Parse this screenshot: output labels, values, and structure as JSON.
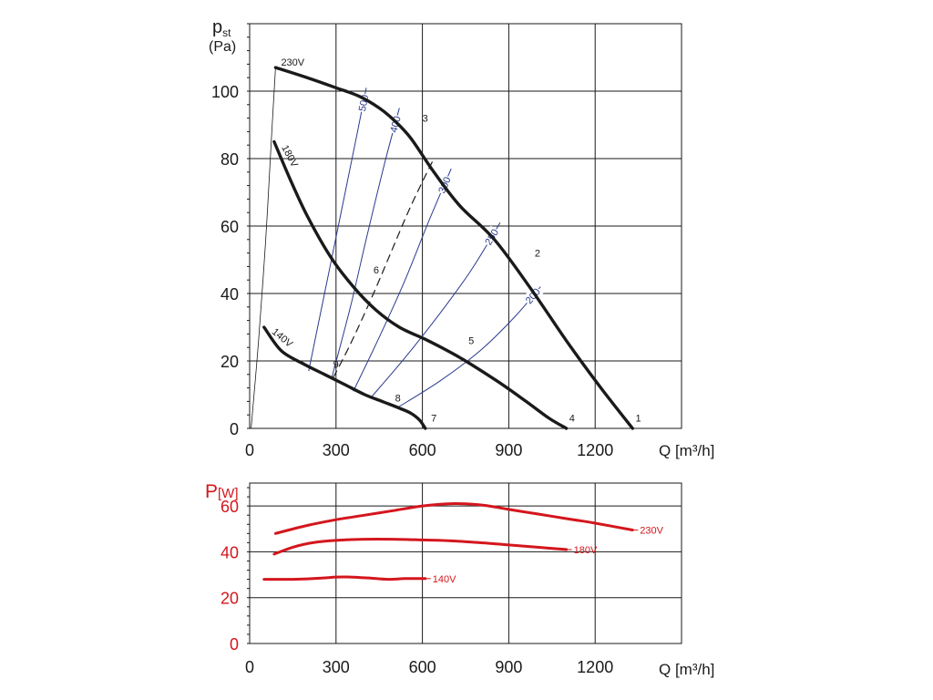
{
  "chart_data": [
    {
      "type": "line",
      "title": "",
      "ylabel_main": "p",
      "ylabel_sub": "st",
      "yunit": "(Pa)",
      "xlabel": "Q [m³/h]",
      "xlim": [
        0,
        1500
      ],
      "ylim": [
        0,
        120
      ],
      "xticks": [
        0,
        300,
        600,
        900,
        1200
      ],
      "xtick_labels": [
        "0",
        "300",
        "600",
        "900",
        "1200"
      ],
      "yticks": [
        0,
        20,
        40,
        60,
        80,
        100
      ],
      "ytick_labels": [
        "0",
        "20",
        "40",
        "60",
        "80",
        "100"
      ],
      "grid": true,
      "series": [
        {
          "name": "230V",
          "color": "#1a1a1a",
          "x": [
            90,
            200,
            300,
            380,
            450,
            500,
            560,
            640,
            730,
            850,
            980,
            1100,
            1220,
            1330
          ],
          "y": [
            107,
            104,
            101,
            98.5,
            95,
            91.5,
            86,
            76,
            66,
            56,
            41,
            26,
            12,
            0
          ]
        },
        {
          "name": "180V",
          "color": "#1a1a1a",
          "x": [
            85,
            140,
            200,
            280,
            360,
            440,
            520,
            620,
            730,
            860,
            960,
            1040,
            1100
          ],
          "y": [
            85,
            74,
            63,
            51,
            42,
            35,
            30,
            26,
            21,
            14,
            8,
            3,
            0
          ]
        },
        {
          "name": "140V",
          "color": "#1a1a1a",
          "x": [
            50,
            110,
            190,
            260,
            330,
            400,
            460,
            520,
            560,
            590,
            610
          ],
          "y": [
            30,
            23,
            19,
            16,
            13,
            10,
            8,
            6,
            4.5,
            2.5,
            0
          ]
        }
      ],
      "point_labels": [
        {
          "text": "1",
          "x": 1340,
          "y": 2
        },
        {
          "text": "2",
          "x": 990,
          "y": 51
        },
        {
          "text": "3",
          "x": 600,
          "y": 91
        },
        {
          "text": "4",
          "x": 1110,
          "y": 2
        },
        {
          "text": "5",
          "x": 760,
          "y": 25
        },
        {
          "text": "6",
          "x": 430,
          "y": 46
        },
        {
          "text": "7",
          "x": 630,
          "y": 2
        },
        {
          "text": "8",
          "x": 505,
          "y": 8
        },
        {
          "text": "9",
          "x": 290,
          "y": 18
        }
      ],
      "iso_lines": [
        {
          "label": "500",
          "color": "#2b3a8f",
          "x": [
            205,
            260,
            320,
            370,
            405
          ],
          "y": [
            17,
            40,
            65,
            86,
            101
          ]
        },
        {
          "label": "400",
          "color": "#2b3a8f",
          "x": [
            285,
            350,
            410,
            470,
            520
          ],
          "y": [
            15,
            36,
            58,
            79,
            95
          ]
        },
        {
          "label": "300",
          "color": "#2b3a8f",
          "x": [
            360,
            450,
            540,
            620,
            700
          ],
          "y": [
            11,
            27,
            44,
            61,
            77
          ]
        },
        {
          "label": "250",
          "color": "#2b3a8f",
          "x": [
            420,
            540,
            660,
            770,
            870
          ],
          "y": [
            9,
            21,
            34,
            47,
            61
          ]
        },
        {
          "label": "200",
          "color": "#2b3a8f",
          "x": [
            510,
            660,
            800,
            920,
            1010
          ],
          "y": [
            6,
            14,
            23,
            33,
            42
          ]
        }
      ],
      "dashed_line": {
        "x": [
          290,
          350,
          420,
          490,
          560,
          640
        ],
        "y": [
          15,
          25,
          38,
          52,
          66,
          80
        ]
      },
      "system_curve": {
        "x": [
          5,
          30,
          55,
          75,
          90
        ],
        "y": [
          0,
          25,
          55,
          85,
          107
        ]
      }
    },
    {
      "type": "line",
      "title": "",
      "ylabel_main": "P",
      "yunit": "[W]",
      "xlabel": "Q [m³/h]",
      "xlim": [
        0,
        1500
      ],
      "ylim": [
        0,
        70
      ],
      "xticks": [
        0,
        300,
        600,
        900,
        1200
      ],
      "xtick_labels": [
        "0",
        "300",
        "600",
        "900",
        "1200"
      ],
      "yticks": [
        0,
        20,
        40,
        60
      ],
      "ytick_labels": [
        "0",
        "20",
        "40",
        "60"
      ],
      "grid": true,
      "series": [
        {
          "name": "230V",
          "color": "#d4161d",
          "x": [
            90,
            200,
            300,
            400,
            500,
            600,
            700,
            800,
            900,
            1000,
            1100,
            1200,
            1330
          ],
          "y": [
            48,
            51.5,
            54,
            56,
            58,
            60,
            61,
            60.5,
            58.5,
            56.5,
            54.5,
            52.5,
            49.5
          ]
        },
        {
          "name": "180V",
          "color": "#d4161d",
          "x": [
            85,
            150,
            220,
            300,
            400,
            500,
            600,
            700,
            800,
            900,
            1000,
            1100
          ],
          "y": [
            39,
            42,
            44,
            45,
            45.5,
            45.5,
            45.2,
            44.8,
            44,
            43,
            42,
            41
          ]
        },
        {
          "name": "140V",
          "color": "#d4161d",
          "x": [
            50,
            150,
            250,
            300,
            350,
            420,
            480,
            540,
            610
          ],
          "y": [
            28,
            28,
            28.5,
            29,
            29,
            28.5,
            28,
            28.3,
            28.3
          ]
        }
      ]
    }
  ]
}
